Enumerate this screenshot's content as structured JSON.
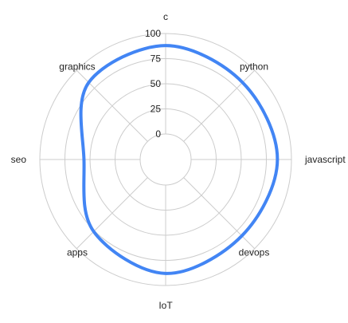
{
  "chart_data": {
    "type": "radar",
    "title": "",
    "categories": [
      "c",
      "python",
      "javascript",
      "devops",
      "IoT",
      "apps",
      "seo",
      "graphics"
    ],
    "r_ticks": [
      0,
      25,
      50,
      75,
      100
    ],
    "r_range": [
      -25,
      100
    ],
    "grid": true,
    "legend": "none",
    "series": [
      {
        "values": [
          88,
          83,
          86,
          82,
          88,
          76,
          56,
          83
        ]
      }
    ],
    "colors": {
      "series": "#4285f4",
      "grid": "#cccccc",
      "text": "#222222"
    }
  }
}
